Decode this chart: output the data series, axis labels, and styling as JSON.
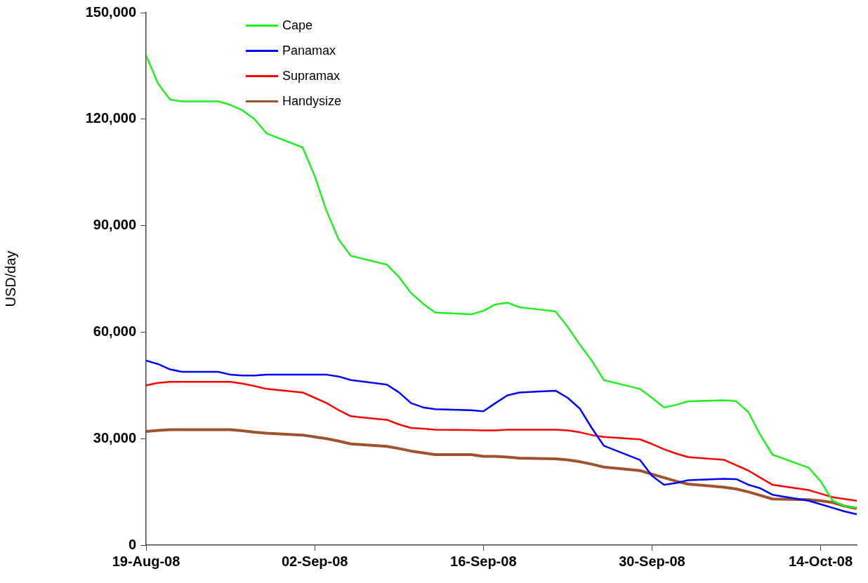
{
  "chart_data": {
    "type": "line",
    "ylabel": "USD/day",
    "x": [
      "2008-08-19",
      "2008-08-20",
      "2008-08-21",
      "2008-08-22",
      "2008-08-25",
      "2008-08-26",
      "2008-08-27",
      "2008-08-28",
      "2008-08-29",
      "2008-09-01",
      "2008-09-02",
      "2008-09-03",
      "2008-09-04",
      "2008-09-05",
      "2008-09-08",
      "2008-09-09",
      "2008-09-10",
      "2008-09-11",
      "2008-09-12",
      "2008-09-15",
      "2008-09-16",
      "2008-09-17",
      "2008-09-18",
      "2008-09-19",
      "2008-09-22",
      "2008-09-23",
      "2008-09-24",
      "2008-09-25",
      "2008-09-26",
      "2008-09-29",
      "2008-09-30",
      "2008-10-01",
      "2008-10-02",
      "2008-10-03",
      "2008-10-06",
      "2008-10-07",
      "2008-10-08",
      "2008-10-09",
      "2008-10-10",
      "2008-10-13",
      "2008-10-14",
      "2008-10-15",
      "2008-10-16",
      "2008-10-17"
    ],
    "series": [
      {
        "name": "Cape",
        "color": "#22ee22",
        "values": [
          138000,
          130000,
          125500,
          125000,
          125000,
          124000,
          122500,
          120000,
          116000,
          112000,
          104000,
          94000,
          86000,
          81500,
          79000,
          75500,
          71000,
          68000,
          65500,
          65000,
          66000,
          67800,
          68300,
          67000,
          65800,
          61500,
          56500,
          52000,
          46500,
          44000,
          41500,
          38800,
          39500,
          40500,
          40800,
          40500,
          37500,
          31000,
          25500,
          21800,
          18000,
          12500,
          11000,
          10500
        ]
      },
      {
        "name": "Panamax",
        "color": "#0000ff",
        "values": [
          52000,
          51000,
          49500,
          48800,
          48800,
          48000,
          47800,
          47800,
          48000,
          48000,
          48000,
          48000,
          47500,
          46500,
          45200,
          43000,
          40000,
          38800,
          38300,
          38000,
          37700,
          40000,
          42200,
          43000,
          43500,
          41500,
          38500,
          33000,
          28000,
          24000,
          19500,
          17000,
          17500,
          18300,
          18700,
          18600,
          17000,
          16000,
          14200,
          12500,
          11500,
          10500,
          9500,
          8700
        ]
      },
      {
        "name": "Supramax",
        "color": "#ff0000",
        "values": [
          45000,
          45700,
          46000,
          46000,
          46000,
          46000,
          45500,
          44800,
          44000,
          43000,
          41500,
          40000,
          38000,
          36300,
          35300,
          34000,
          33000,
          32800,
          32500,
          32400,
          32300,
          32300,
          32500,
          32500,
          32500,
          32300,
          31800,
          31000,
          30500,
          29800,
          28500,
          27000,
          25800,
          24800,
          24000,
          22500,
          21000,
          19000,
          17000,
          15500,
          14500,
          13500,
          13000,
          12500
        ]
      },
      {
        "name": "Handysize",
        "color": "#a0522d",
        "values": [
          32000,
          32300,
          32500,
          32500,
          32500,
          32500,
          32200,
          31800,
          31500,
          31000,
          30500,
          30000,
          29300,
          28500,
          27800,
          27200,
          26500,
          26000,
          25500,
          25500,
          25000,
          25000,
          24800,
          24500,
          24300,
          24000,
          23500,
          22800,
          22000,
          21000,
          20000,
          19000,
          18000,
          17200,
          16300,
          15800,
          15000,
          14000,
          13000,
          12800,
          12500,
          12000,
          11000,
          10300
        ]
      }
    ],
    "xlim": [
      "2008-08-19",
      "2008-10-17"
    ],
    "xticks": [
      {
        "value": "2008-08-19",
        "label": "19-Aug-08"
      },
      {
        "value": "2008-09-02",
        "label": "02-Sep-08"
      },
      {
        "value": "2008-09-16",
        "label": "16-Sep-08"
      },
      {
        "value": "2008-09-30",
        "label": "30-Sep-08"
      },
      {
        "value": "2008-10-14",
        "label": "14-Oct-08"
      }
    ],
    "ylim": [
      0,
      150000
    ],
    "yticks": [
      {
        "value": 0,
        "label": "0"
      },
      {
        "value": 30000,
        "label": "30,000"
      },
      {
        "value": 60000,
        "label": "60,000"
      },
      {
        "value": 90000,
        "label": "90,000"
      },
      {
        "value": 120000,
        "label": "120,000"
      },
      {
        "value": 150000,
        "label": "150,000"
      }
    ],
    "legend": "top left",
    "grid": false,
    "marker": "none",
    "line_style": "solid"
  }
}
